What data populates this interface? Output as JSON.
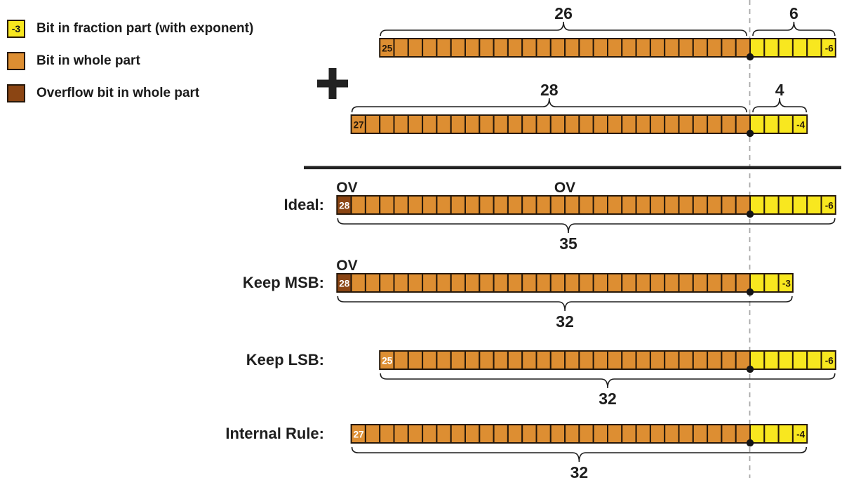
{
  "operator_symbol": "+",
  "colors": {
    "fraction_bit": "#F8E71F",
    "whole_bit": "#DD8E32",
    "overflow_bit": "#8B4513",
    "cell_border": "#26180a",
    "dark_text": "#26180a",
    "white_text": "#ffffff",
    "ink": "#1e1e1e",
    "guide_line": "#a8a8a8"
  },
  "legend": {
    "items": [
      {
        "type": "fraction_bit",
        "swatch_text": "-3",
        "label": "Bit in fraction part (with exponent)"
      },
      {
        "type": "whole_bit",
        "swatch_text": "",
        "label": "Bit in whole part"
      },
      {
        "type": "overflow_bit",
        "swatch_text": "",
        "label": "Overflow bit in whole part"
      }
    ]
  },
  "rows": [
    {
      "id": "operand-a",
      "label": "",
      "whole_bits": 26,
      "fraction_bits": 6,
      "msb_exponent": "25",
      "lsb_exponent": "-6",
      "overflow_msb": false,
      "msb_text_white": false,
      "braces": [
        {
          "span": "whole",
          "side": "above",
          "label": "26"
        },
        {
          "span": "fraction",
          "side": "above",
          "label": "6"
        }
      ],
      "ov_marks": []
    },
    {
      "id": "operand-b",
      "label": "",
      "whole_bits": 28,
      "fraction_bits": 4,
      "msb_exponent": "27",
      "lsb_exponent": "-4",
      "overflow_msb": false,
      "msb_text_white": false,
      "braces": [
        {
          "span": "whole",
          "side": "above",
          "label": "28"
        },
        {
          "span": "fraction",
          "side": "above",
          "label": "4"
        }
      ],
      "ov_marks": []
    },
    {
      "id": "ideal",
      "label": "Ideal:",
      "whole_bits": 29,
      "fraction_bits": 6,
      "msb_exponent": "28",
      "lsb_exponent": "-6",
      "overflow_msb": true,
      "msb_text_white": true,
      "braces": [
        {
          "span": "all",
          "side": "below",
          "label": "35"
        }
      ],
      "ov_marks": [
        {
          "text": "OV",
          "at": "msb"
        },
        {
          "text": "OV",
          "at": "mid"
        }
      ]
    },
    {
      "id": "keep-msb",
      "label": "Keep MSB:",
      "whole_bits": 29,
      "fraction_bits": 3,
      "msb_exponent": "28",
      "lsb_exponent": "-3",
      "overflow_msb": true,
      "msb_text_white": true,
      "braces": [
        {
          "span": "all",
          "side": "below",
          "label": "32"
        }
      ],
      "ov_marks": [
        {
          "text": "OV",
          "at": "msb"
        }
      ]
    },
    {
      "id": "keep-lsb",
      "label": "Keep LSB:",
      "whole_bits": 26,
      "fraction_bits": 6,
      "msb_exponent": "25",
      "lsb_exponent": "-6",
      "overflow_msb": false,
      "msb_text_white": true,
      "braces": [
        {
          "span": "all",
          "side": "below",
          "label": "32"
        }
      ],
      "ov_marks": []
    },
    {
      "id": "internal-rule",
      "label": "Internal Rule:",
      "whole_bits": 28,
      "fraction_bits": 4,
      "msb_exponent": "27",
      "lsb_exponent": "-4",
      "overflow_msb": false,
      "msb_text_white": true,
      "braces": [
        {
          "span": "all",
          "side": "below",
          "label": "32"
        }
      ],
      "ov_marks": []
    }
  ]
}
